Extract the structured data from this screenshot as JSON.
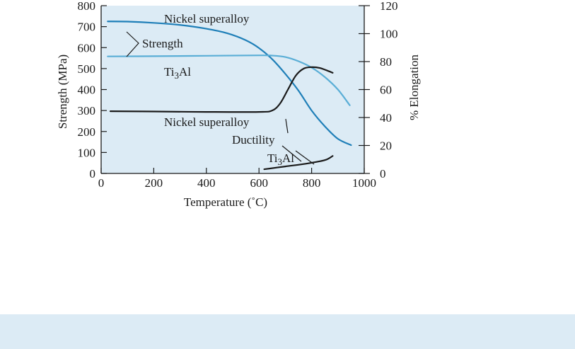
{
  "chart_data": {
    "type": "line",
    "title": "",
    "xlabel": "Temperature (˚C)",
    "ylabel_left": "Strength (MPa)",
    "ylabel_right": "% Elongation",
    "xlim": [
      0,
      1000
    ],
    "ylim_left": [
      0,
      800
    ],
    "ylim_right": [
      0,
      120
    ],
    "x_ticks": [
      0,
      200,
      400,
      600,
      800,
      1000
    ],
    "y_left_ticks": [
      0,
      100,
      200,
      300,
      400,
      500,
      600,
      700,
      800
    ],
    "y_right_ticks": [
      0,
      20,
      40,
      60,
      80,
      100,
      120
    ],
    "grid": false,
    "series": [
      {
        "name": "Nickel superalloy strength",
        "axis": "left",
        "color": "#1f7fb8",
        "points": [
          [
            25,
            725
          ],
          [
            100,
            724
          ],
          [
            200,
            718
          ],
          [
            300,
            708
          ],
          [
            400,
            690
          ],
          [
            480,
            668
          ],
          [
            550,
            635
          ],
          [
            600,
            598
          ],
          [
            650,
            545
          ],
          [
            700,
            475
          ],
          [
            750,
            395
          ],
          [
            800,
            300
          ],
          [
            850,
            225
          ],
          [
            900,
            165
          ],
          [
            950,
            135
          ]
        ]
      },
      {
        "name": "Ti3Al strength",
        "axis": "left",
        "color": "#5aaed6",
        "points": [
          [
            25,
            558
          ],
          [
            200,
            559
          ],
          [
            400,
            561
          ],
          [
            600,
            563
          ],
          [
            650,
            562
          ],
          [
            700,
            555
          ],
          [
            750,
            535
          ],
          [
            800,
            505
          ],
          [
            850,
            460
          ],
          [
            900,
            400
          ],
          [
            945,
            325
          ]
        ]
      },
      {
        "name": "Nickel superalloy ductility",
        "axis": "right",
        "color": "#1a1a1a",
        "points": [
          [
            35,
            44.5
          ],
          [
            200,
            44.3
          ],
          [
            400,
            44
          ],
          [
            600,
            44
          ],
          [
            650,
            45
          ],
          [
            680,
            50
          ],
          [
            710,
            60
          ],
          [
            740,
            70
          ],
          [
            770,
            75
          ],
          [
            800,
            76
          ],
          [
            830,
            75.5
          ],
          [
            860,
            73.5
          ],
          [
            880,
            72
          ]
        ]
      },
      {
        "name": "Ti3Al ductility",
        "axis": "right",
        "color": "#1a1a1a",
        "points": [
          [
            620,
            3
          ],
          [
            700,
            5
          ],
          [
            780,
            7
          ],
          [
            850,
            9.5
          ],
          [
            880,
            12.5
          ]
        ]
      }
    ],
    "annotations": [
      {
        "id": "nickel_strength",
        "text": "Nickel superalloy"
      },
      {
        "id": "strength",
        "text": "Strength"
      },
      {
        "id": "ti3al_strength",
        "text": "Ti3Al"
      },
      {
        "id": "nickel_ductility",
        "text": "Nickel superalloy"
      },
      {
        "id": "ductility",
        "text": "Ductility"
      },
      {
        "id": "ti3al_ductility",
        "text": "Ti3Al"
      }
    ]
  },
  "colors": {
    "plot_background": "#dcebf5",
    "caption_band": "#dcebf5"
  }
}
